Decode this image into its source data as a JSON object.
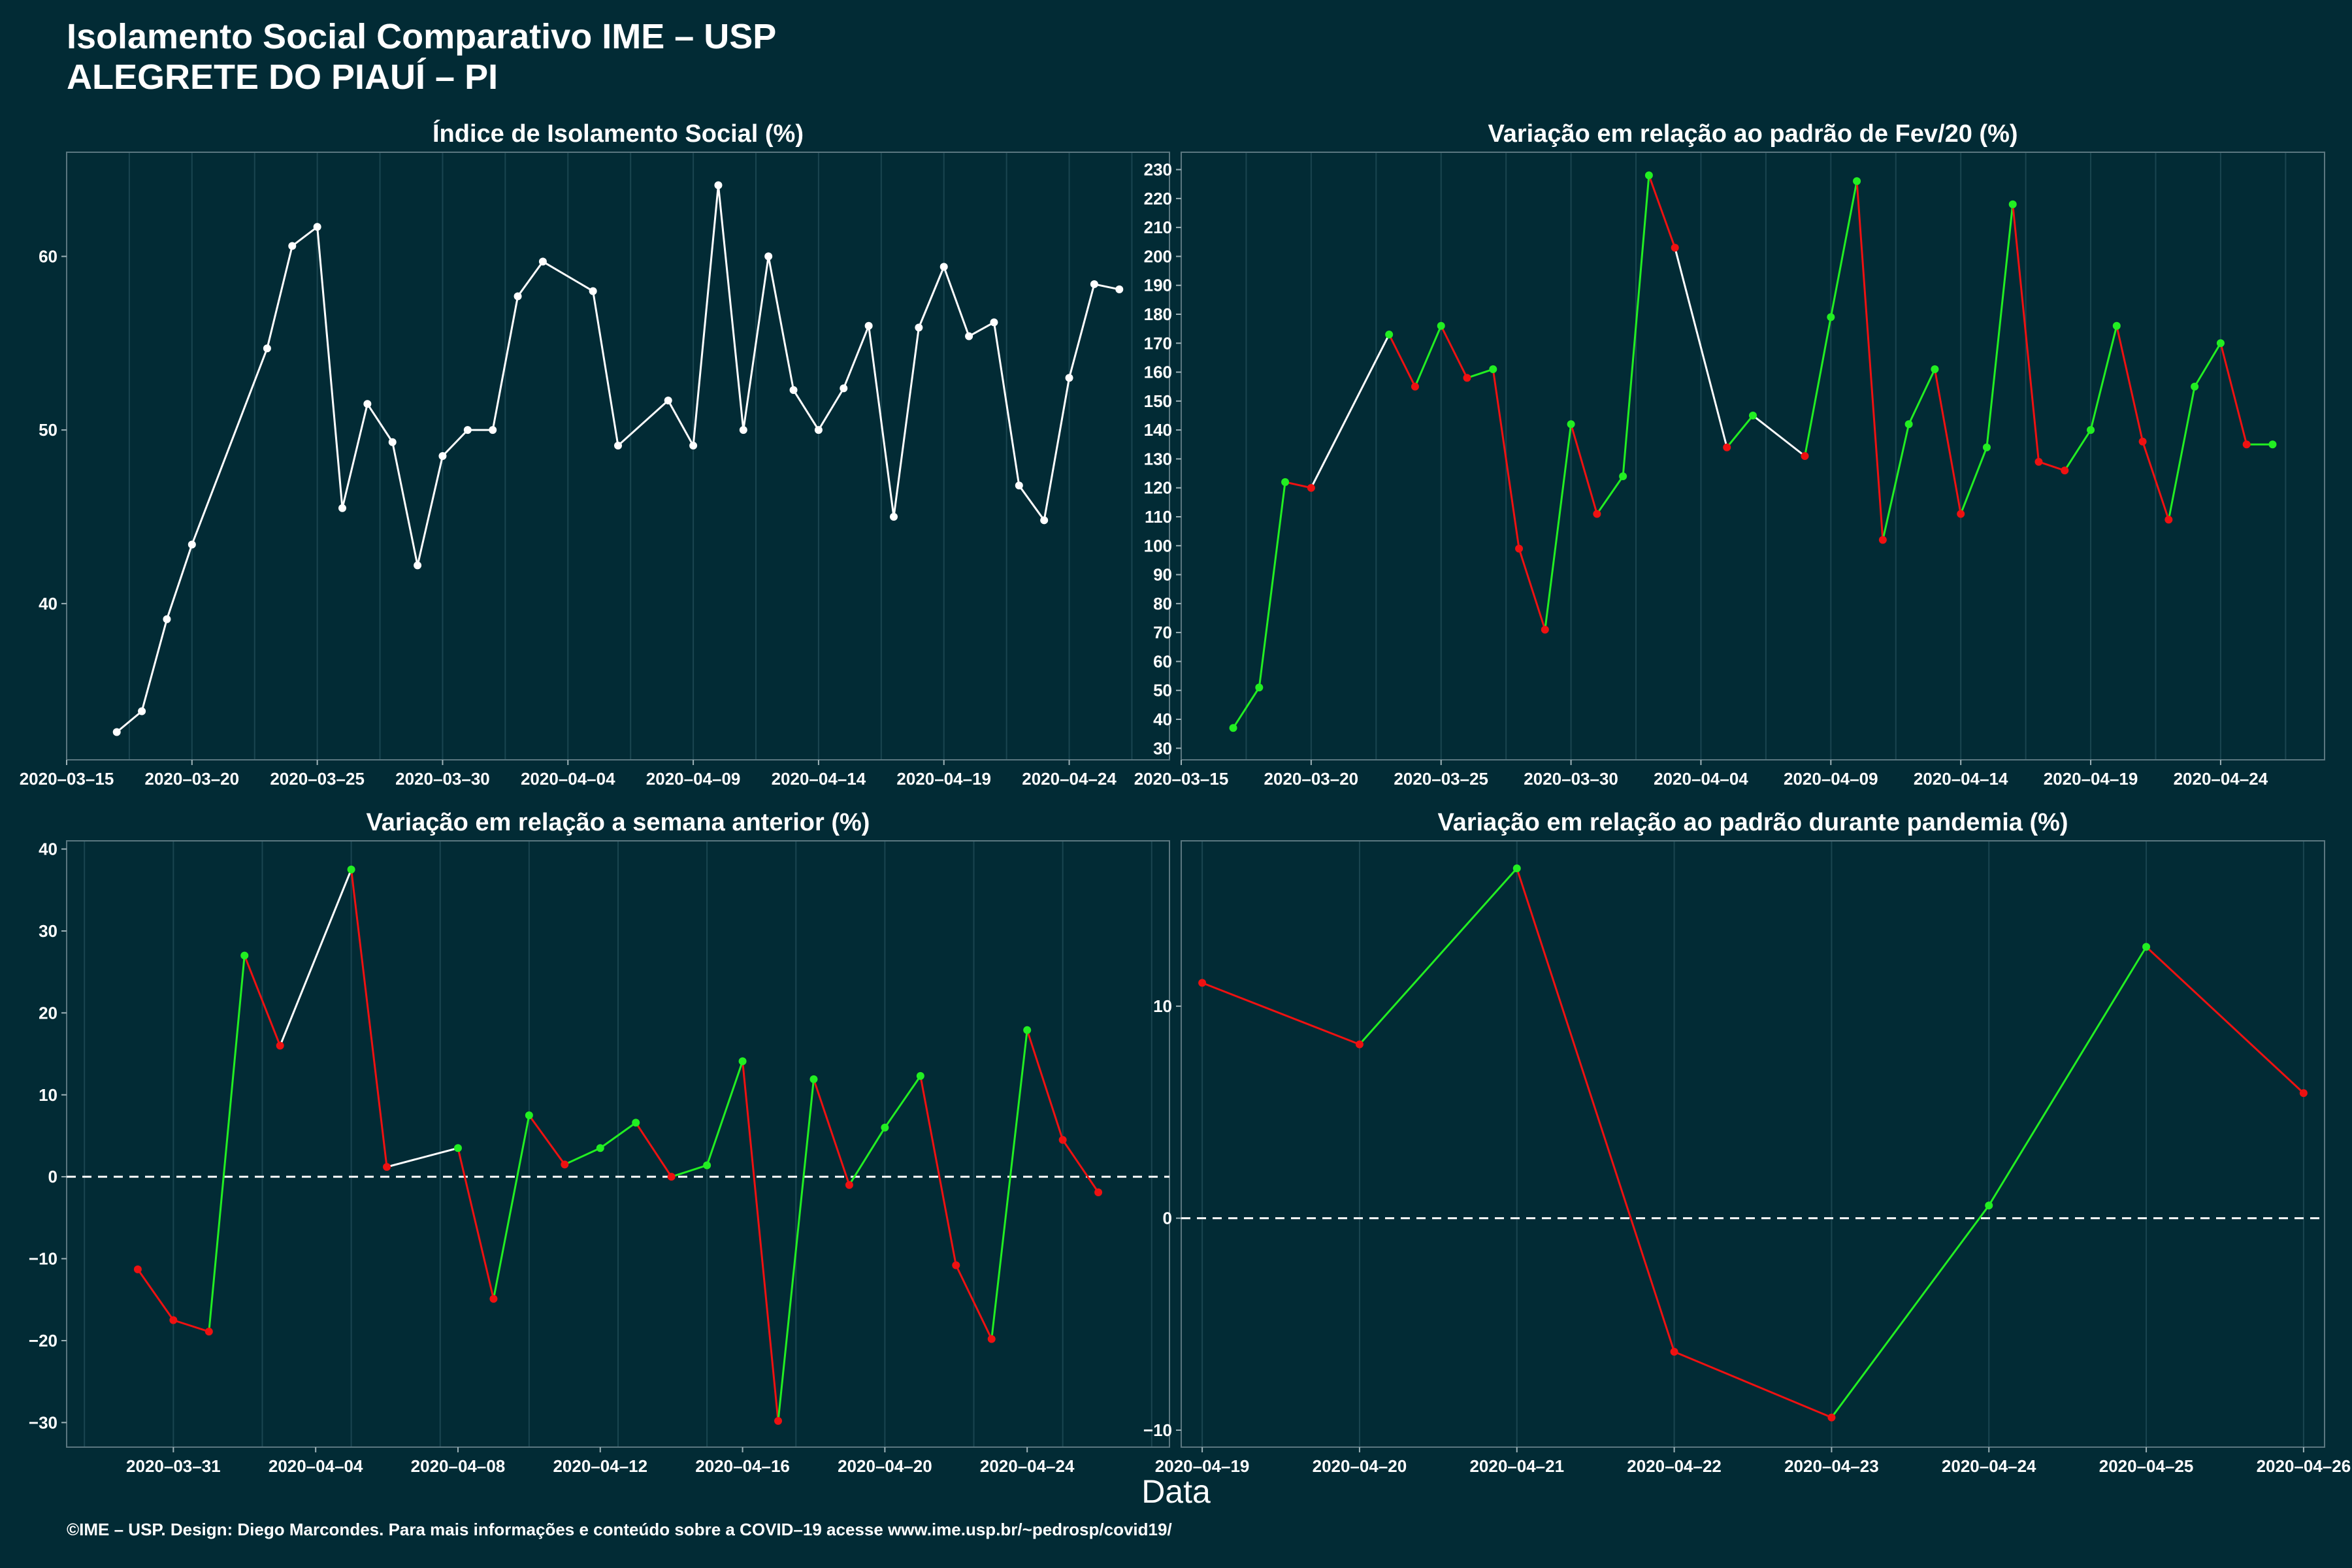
{
  "page": {
    "title_line1": "Isolamento Social Comparativo IME – USP",
    "title_line2": "ALEGRETE DO PIAUÍ – PI",
    "x_axis_label": "Data",
    "footer": "©IME – USP. Design: Diego Marcondes. Para mais informações e conteúdo sobre a COVID–19 acesse www.ime.usp.br/~pedrosp/covid19/"
  },
  "colors": {
    "background": "#022b35",
    "line_white": "#ffffff",
    "increase_green": "#22ee22",
    "decrease_red": "#ee1111",
    "zero_line": "#ffffff"
  },
  "chart_data": [
    {
      "id": "isolation-index",
      "type": "line",
      "title": "Índice de Isolamento Social (%)",
      "color_mode": "white",
      "x_type": "date",
      "xlim": [
        "2020-03-15",
        "2020-04-28"
      ],
      "x_ticks": [
        "2020-03-15",
        "2020-03-20",
        "2020-03-25",
        "2020-03-30",
        "2020-04-04",
        "2020-04-09",
        "2020-04-14",
        "2020-04-19",
        "2020-04-24"
      ],
      "ylim": [
        31,
        66
      ],
      "y_ticks": [
        40,
        50,
        60
      ],
      "points": [
        [
          "2020-03-17",
          32.6
        ],
        [
          "2020-03-18",
          33.8
        ],
        [
          "2020-03-19",
          39.1
        ],
        [
          "2020-03-20",
          43.4
        ],
        [
          "2020-03-23",
          54.7
        ],
        [
          "2020-03-24",
          60.6
        ],
        [
          "2020-03-25",
          61.7
        ],
        [
          "2020-03-26",
          45.5
        ],
        [
          "2020-03-27",
          51.5
        ],
        [
          "2020-03-28",
          49.3
        ],
        [
          "2020-03-29",
          42.2
        ],
        [
          "2020-03-30",
          48.5
        ],
        [
          "2020-03-31",
          50.0
        ],
        [
          "2020-04-01",
          50.0
        ],
        [
          "2020-04-02",
          57.7
        ],
        [
          "2020-04-03",
          59.7
        ],
        [
          "2020-04-05",
          58.0
        ],
        [
          "2020-04-06",
          49.1
        ],
        [
          "2020-04-08",
          51.7
        ],
        [
          "2020-04-09",
          49.1
        ],
        [
          "2020-04-10",
          64.1
        ],
        [
          "2020-04-11",
          50.0
        ],
        [
          "2020-04-12",
          60.0
        ],
        [
          "2020-04-13",
          52.3
        ],
        [
          "2020-04-14",
          50.0
        ],
        [
          "2020-04-15",
          52.4
        ],
        [
          "2020-04-16",
          56.0
        ],
        [
          "2020-04-17",
          45.0
        ],
        [
          "2020-04-18",
          55.9
        ],
        [
          "2020-04-19",
          59.4
        ],
        [
          "2020-04-20",
          55.4
        ],
        [
          "2020-04-21",
          56.2
        ],
        [
          "2020-04-22",
          46.8
        ],
        [
          "2020-04-23",
          44.8
        ],
        [
          "2020-04-24",
          53.0
        ],
        [
          "2020-04-25",
          58.4
        ],
        [
          "2020-04-26",
          58.1
        ]
      ]
    },
    {
      "id": "variation-feb",
      "type": "line",
      "title": "Variação em relação ao padrão de Fev/20 (%)",
      "color_mode": "trend",
      "x_type": "date",
      "xlim": [
        "2020-03-15",
        "2020-04-28"
      ],
      "x_ticks": [
        "2020-03-15",
        "2020-03-20",
        "2020-03-25",
        "2020-03-30",
        "2020-04-04",
        "2020-04-09",
        "2020-04-14",
        "2020-04-19",
        "2020-04-24"
      ],
      "ylim": [
        26,
        236
      ],
      "y_ticks": [
        30,
        40,
        50,
        60,
        70,
        80,
        90,
        100,
        110,
        120,
        130,
        140,
        150,
        160,
        170,
        180,
        190,
        200,
        210,
        220,
        230
      ],
      "points": [
        [
          "2020-03-17",
          37
        ],
        [
          "2020-03-18",
          51
        ],
        [
          "2020-03-19",
          122
        ],
        [
          "2020-03-20",
          120
        ],
        [
          "2020-03-23",
          173
        ],
        [
          "2020-03-24",
          155
        ],
        [
          "2020-03-25",
          176
        ],
        [
          "2020-03-26",
          158
        ],
        [
          "2020-03-27",
          161
        ],
        [
          "2020-03-28",
          99
        ],
        [
          "2020-03-29",
          71
        ],
        [
          "2020-03-30",
          142
        ],
        [
          "2020-03-31",
          111
        ],
        [
          "2020-04-01",
          124
        ],
        [
          "2020-04-02",
          228
        ],
        [
          "2020-04-03",
          203
        ],
        [
          "2020-04-05",
          134
        ],
        [
          "2020-04-06",
          145
        ],
        [
          "2020-04-08",
          131
        ],
        [
          "2020-04-09",
          179
        ],
        [
          "2020-04-10",
          226
        ],
        [
          "2020-04-11",
          102
        ],
        [
          "2020-04-12",
          142
        ],
        [
          "2020-04-13",
          161
        ],
        [
          "2020-04-14",
          111
        ],
        [
          "2020-04-15",
          134
        ],
        [
          "2020-04-16",
          218
        ],
        [
          "2020-04-17",
          129
        ],
        [
          "2020-04-18",
          126
        ],
        [
          "2020-04-19",
          140
        ],
        [
          "2020-04-20",
          176
        ],
        [
          "2020-04-21",
          136
        ],
        [
          "2020-04-22",
          109
        ],
        [
          "2020-04-23",
          155
        ],
        [
          "2020-04-24",
          170
        ],
        [
          "2020-04-25",
          135
        ],
        [
          "2020-04-26",
          135
        ]
      ]
    },
    {
      "id": "variation-week",
      "type": "line",
      "title": "Variação em relação a semana anterior (%)",
      "color_mode": "trend",
      "zero_line": true,
      "x_type": "date",
      "xlim": [
        "2020-03-28",
        "2020-04-28"
      ],
      "x_ticks": [
        "2020-03-31",
        "2020-04-04",
        "2020-04-08",
        "2020-04-12",
        "2020-04-16",
        "2020-04-20",
        "2020-04-24"
      ],
      "ylim": [
        -33,
        41
      ],
      "y_ticks": [
        -30,
        -20,
        -10,
        0,
        10,
        20,
        30,
        40
      ],
      "points": [
        [
          "2020-03-30",
          -11.3
        ],
        [
          "2020-03-31",
          -17.5
        ],
        [
          "2020-04-01",
          -18.9
        ],
        [
          "2020-04-02",
          27.0
        ],
        [
          "2020-04-03",
          16.0
        ],
        [
          "2020-04-05",
          37.5
        ],
        [
          "2020-04-06",
          1.2
        ],
        [
          "2020-04-08",
          3.5
        ],
        [
          "2020-04-09",
          -14.9
        ],
        [
          "2020-04-10",
          7.5
        ],
        [
          "2020-04-11",
          1.5
        ],
        [
          "2020-04-12",
          3.5
        ],
        [
          "2020-04-13",
          6.6
        ],
        [
          "2020-04-14",
          0.0
        ],
        [
          "2020-04-15",
          1.4
        ],
        [
          "2020-04-16",
          14.1
        ],
        [
          "2020-04-17",
          -29.8
        ],
        [
          "2020-04-18",
          11.9
        ],
        [
          "2020-04-19",
          -1.0
        ],
        [
          "2020-04-20",
          6.0
        ],
        [
          "2020-04-21",
          12.3
        ],
        [
          "2020-04-22",
          -10.8
        ],
        [
          "2020-04-23",
          -19.8
        ],
        [
          "2020-04-24",
          17.9
        ],
        [
          "2020-04-25",
          4.5
        ],
        [
          "2020-04-26",
          -1.9
        ]
      ]
    },
    {
      "id": "variation-pandemic",
      "type": "line",
      "title": "Variação em relação ao padrão durante pandemia (%)",
      "color_mode": "trend",
      "zero_line": true,
      "x_type": "date",
      "xlim": [
        "2020-04-18 20:48",
        "2020-04-26 03:12"
      ],
      "x_ticks": [
        "2020-04-19",
        "2020-04-20",
        "2020-04-21",
        "2020-04-22",
        "2020-04-23",
        "2020-04-24",
        "2020-04-25",
        "2020-04-26"
      ],
      "ylim": [
        -10.8,
        17.8
      ],
      "y_ticks": [
        -10,
        0,
        10
      ],
      "points": [
        [
          "2020-04-19",
          11.1
        ],
        [
          "2020-04-20",
          8.2
        ],
        [
          "2020-04-21",
          16.5
        ],
        [
          "2020-04-22",
          -6.3
        ],
        [
          "2020-04-23",
          -9.4
        ],
        [
          "2020-04-24",
          0.6
        ],
        [
          "2020-04-25",
          12.8
        ],
        [
          "2020-04-26",
          5.9
        ]
      ]
    }
  ]
}
